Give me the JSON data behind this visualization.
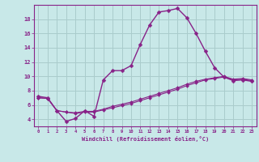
{
  "background_color": "#c8e8e8",
  "grid_color": "#aacccc",
  "line_color": "#882288",
  "marker_color": "#882288",
  "spine_color": "#882288",
  "xlim": [
    -0.5,
    23.5
  ],
  "ylim": [
    3.0,
    20.0
  ],
  "xtick_values": [
    0,
    1,
    2,
    3,
    4,
    5,
    6,
    7,
    8,
    9,
    10,
    11,
    12,
    13,
    14,
    15,
    16,
    17,
    18,
    19,
    20,
    21,
    22,
    23
  ],
  "xtick_labels": [
    "0",
    "1",
    "2",
    "3",
    "4",
    "5",
    "6",
    "7",
    "8",
    "9",
    "10",
    "11",
    "12",
    "13",
    "14",
    "15",
    "16",
    "17",
    "18",
    "19",
    "20",
    "21",
    "22",
    "23"
  ],
  "ytick_values": [
    4,
    6,
    8,
    10,
    12,
    14,
    16,
    18
  ],
  "ytick_labels": [
    "4",
    "6",
    "8",
    "10",
    "12",
    "14",
    "16",
    "18"
  ],
  "xlabel": "Windchill (Refroidissement éolien,°C)",
  "series": [
    {
      "x": [
        0,
        1,
        2,
        3,
        4,
        5,
        6,
        7,
        8,
        9,
        10,
        11,
        12,
        13,
        14,
        15,
        16,
        17,
        18,
        19,
        20,
        21,
        22,
        23
      ],
      "y": [
        7.2,
        7.0,
        5.2,
        3.7,
        4.1,
        5.2,
        4.4,
        9.5,
        10.8,
        10.8,
        11.5,
        14.5,
        17.2,
        19.0,
        19.2,
        19.5,
        18.2,
        16.0,
        13.5,
        11.2,
        9.9,
        9.4,
        9.5,
        9.3
      ],
      "linewidth": 1.0,
      "markersize": 2.5
    },
    {
      "x": [
        0,
        1,
        2,
        3,
        4,
        5,
        6,
        7,
        8,
        9,
        10,
        11,
        12,
        13,
        14,
        15,
        16,
        17,
        18,
        19,
        20,
        21,
        22,
        23
      ],
      "y": [
        7.0,
        6.9,
        5.2,
        5.0,
        4.8,
        5.0,
        5.0,
        5.3,
        5.6,
        5.9,
        6.2,
        6.6,
        7.0,
        7.4,
        7.8,
        8.2,
        8.7,
        9.1,
        9.5,
        9.7,
        9.9,
        9.5,
        9.6,
        9.4
      ],
      "linewidth": 0.8,
      "markersize": 2.0
    },
    {
      "x": [
        0,
        1,
        2,
        3,
        4,
        5,
        6,
        7,
        8,
        9,
        10,
        11,
        12,
        13,
        14,
        15,
        16,
        17,
        18,
        19,
        20,
        21,
        22,
        23
      ],
      "y": [
        7.0,
        6.9,
        5.2,
        5.0,
        4.9,
        5.1,
        5.1,
        5.4,
        5.8,
        6.1,
        6.4,
        6.8,
        7.2,
        7.6,
        8.0,
        8.4,
        8.9,
        9.3,
        9.6,
        9.8,
        10.0,
        9.6,
        9.7,
        9.5
      ],
      "linewidth": 0.8,
      "markersize": 2.0
    }
  ]
}
